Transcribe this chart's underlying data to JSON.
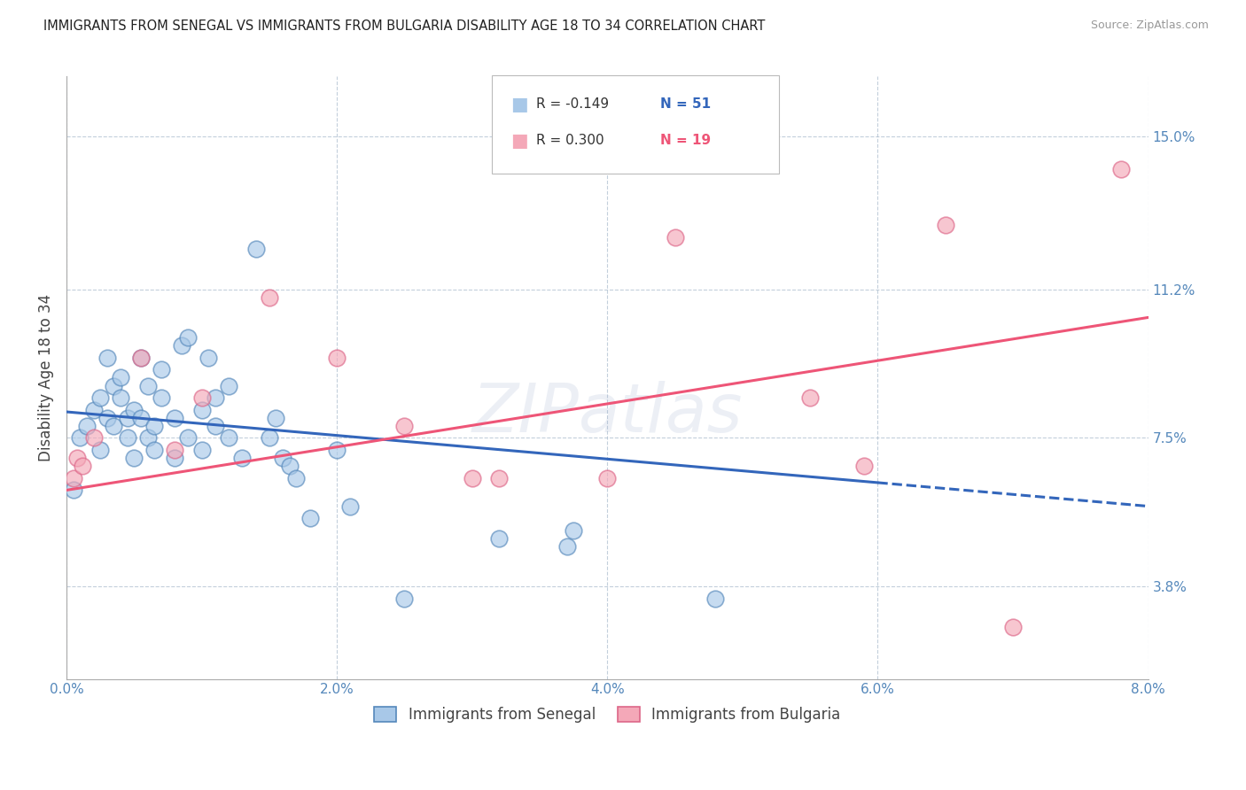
{
  "title": "IMMIGRANTS FROM SENEGAL VS IMMIGRANTS FROM BULGARIA DISABILITY AGE 18 TO 34 CORRELATION CHART",
  "source": "Source: ZipAtlas.com",
  "ylabel": "Disability Age 18 to 34",
  "x_tick_labels": [
    "0.0%",
    "2.0%",
    "4.0%",
    "6.0%",
    "8.0%"
  ],
  "x_tick_values": [
    0.0,
    2.0,
    4.0,
    6.0,
    8.0
  ],
  "y_tick_labels": [
    "3.8%",
    "7.5%",
    "11.2%",
    "15.0%"
  ],
  "y_tick_values": [
    3.8,
    7.5,
    11.2,
    15.0
  ],
  "xlim": [
    0.0,
    8.0
  ],
  "ylim": [
    1.5,
    16.5
  ],
  "legend_blue_r": "R = -0.149",
  "legend_blue_n": "N = 51",
  "legend_pink_r": "R = 0.300",
  "legend_pink_n": "N = 19",
  "blue_scatter_face": "#A8C8E8",
  "blue_scatter_edge": "#5588BB",
  "pink_scatter_face": "#F4A8B8",
  "pink_scatter_edge": "#DD6688",
  "blue_line_color": "#3366BB",
  "pink_line_color": "#EE5577",
  "watermark": "ZIPatlas",
  "senegal_x": [
    0.05,
    0.1,
    0.15,
    0.2,
    0.25,
    0.25,
    0.3,
    0.3,
    0.35,
    0.35,
    0.4,
    0.4,
    0.45,
    0.45,
    0.5,
    0.5,
    0.55,
    0.55,
    0.6,
    0.6,
    0.65,
    0.65,
    0.7,
    0.7,
    0.8,
    0.8,
    0.85,
    0.9,
    0.9,
    1.0,
    1.0,
    1.05,
    1.1,
    1.1,
    1.2,
    1.2,
    1.3,
    1.4,
    1.5,
    1.55,
    1.6,
    1.65,
    1.7,
    1.8,
    2.0,
    2.1,
    2.5,
    3.2,
    3.7,
    3.75,
    4.8
  ],
  "senegal_y": [
    6.2,
    7.5,
    7.8,
    8.2,
    8.5,
    7.2,
    9.5,
    8.0,
    7.8,
    8.8,
    9.0,
    8.5,
    8.0,
    7.5,
    8.2,
    7.0,
    8.0,
    9.5,
    7.5,
    8.8,
    7.2,
    7.8,
    8.5,
    9.2,
    7.0,
    8.0,
    9.8,
    7.5,
    10.0,
    7.2,
    8.2,
    9.5,
    7.8,
    8.5,
    7.5,
    8.8,
    7.0,
    12.2,
    7.5,
    8.0,
    7.0,
    6.8,
    6.5,
    5.5,
    7.2,
    5.8,
    3.5,
    5.0,
    4.8,
    5.2,
    3.5
  ],
  "bulgaria_x": [
    0.05,
    0.08,
    0.12,
    0.2,
    0.55,
    0.8,
    1.0,
    1.5,
    2.0,
    2.5,
    3.0,
    3.2,
    4.0,
    4.5,
    5.5,
    5.9,
    6.5,
    7.0,
    7.8
  ],
  "bulgaria_y": [
    6.5,
    7.0,
    6.8,
    7.5,
    9.5,
    7.2,
    8.5,
    11.0,
    9.5,
    7.8,
    6.5,
    6.5,
    6.5,
    12.5,
    8.5,
    6.8,
    12.8,
    2.8,
    14.2
  ],
  "blue_trend_x0": 0.0,
  "blue_trend_y0": 8.15,
  "blue_trend_x1": 8.0,
  "blue_trend_y1": 5.8,
  "blue_solid_end_x": 6.0,
  "pink_trend_x0": 0.0,
  "pink_trend_y0": 6.2,
  "pink_trend_x1": 8.0,
  "pink_trend_y1": 10.5
}
